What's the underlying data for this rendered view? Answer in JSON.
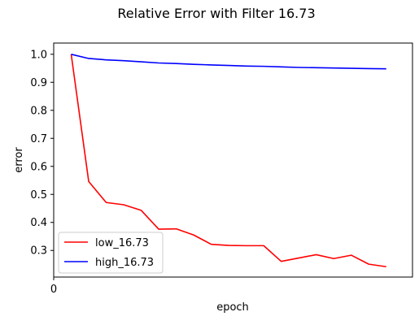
{
  "chart_data": {
    "type": "line",
    "title": "Relative Error with Filter 16.73",
    "xlabel": "epoch",
    "ylabel": "error",
    "xlim": [
      0,
      20.5
    ],
    "ylim": [
      0.205,
      1.04
    ],
    "x_ticks": [
      0
    ],
    "x_tick_labels": [
      "0"
    ],
    "y_ticks": [
      0.3,
      0.4,
      0.5,
      0.6,
      0.7,
      0.8,
      0.9,
      1.0
    ],
    "y_tick_labels": [
      "0.3",
      "0.4",
      "0.5",
      "0.6",
      "0.7",
      "0.8",
      "0.9",
      "1.0"
    ],
    "grid": false,
    "legend_position": "lower-left",
    "x": [
      1,
      2,
      3,
      4,
      5,
      6,
      7,
      8,
      9,
      10,
      11,
      12,
      13,
      14,
      15,
      16,
      17,
      18,
      19,
      20
    ],
    "series": [
      {
        "name": "low_16.73",
        "color": "#ff0000",
        "values": [
          1.0,
          0.546,
          0.471,
          0.463,
          0.443,
          0.376,
          0.377,
          0.355,
          0.322,
          0.318,
          0.317,
          0.317,
          0.261,
          0.273,
          0.285,
          0.271,
          0.283,
          0.251,
          0.242,
          null
        ]
      },
      {
        "name": "high_16.73",
        "color": "#0000ff",
        "values": [
          1.0,
          0.985,
          0.98,
          0.977,
          0.973,
          0.969,
          0.967,
          0.964,
          0.962,
          0.96,
          0.958,
          0.957,
          0.955,
          0.953,
          0.952,
          0.951,
          0.95,
          0.949,
          0.948,
          null
        ]
      }
    ]
  }
}
